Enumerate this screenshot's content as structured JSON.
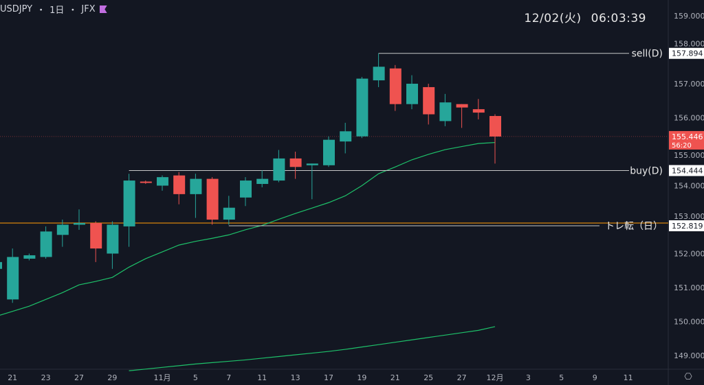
{
  "header": {
    "symbol": "USDJPY",
    "sep1": "・",
    "interval": "1日",
    "sep2": "・",
    "exchange": "JFX",
    "flag_icon": "flag-icon",
    "flag_color": "#c16ee0"
  },
  "clock": {
    "date": "12/02(火)",
    "time": "06:03:39"
  },
  "colors": {
    "up": "#26a69a",
    "down": "#ef5350",
    "ma_short": "#1ec26a",
    "ma_long": "#1ec26a",
    "orange_line": "#b8740f",
    "bg": "#131722"
  },
  "chart_data": {
    "type": "candlestick",
    "title": "USDJPY・1日・JFX",
    "y_ticks": [
      "159.000",
      "158.000",
      "157.000",
      "156.000",
      "155.000",
      "154.000",
      "153.000",
      "152.000",
      "151.000",
      "150.000",
      "149.000"
    ],
    "y_tick_values": [
      159,
      158,
      157,
      156,
      155,
      154,
      153,
      152,
      151,
      150,
      149
    ],
    "x_ticks": [
      {
        "label": "21",
        "index": 1
      },
      {
        "label": "23",
        "index": 3
      },
      {
        "label": "27",
        "index": 5
      },
      {
        "label": "29",
        "index": 7
      },
      {
        "label": "11月",
        "index": 10
      },
      {
        "label": "5",
        "index": 12
      },
      {
        "label": "7",
        "index": 14
      },
      {
        "label": "11",
        "index": 16
      },
      {
        "label": "13",
        "index": 18
      },
      {
        "label": "17",
        "index": 20
      },
      {
        "label": "19",
        "index": 22
      },
      {
        "label": "21",
        "index": 24
      },
      {
        "label": "25",
        "index": 26
      },
      {
        "label": "27",
        "index": 28
      },
      {
        "label": "12月",
        "index": 30
      },
      {
        "label": "3",
        "index": 32
      },
      {
        "label": "5",
        "index": 34
      },
      {
        "label": "9",
        "index": 36
      },
      {
        "label": "11",
        "index": 38
      }
    ],
    "candles": [
      [
        151.55,
        151.8,
        151.45,
        151.75
      ],
      [
        150.65,
        152.15,
        150.55,
        151.9
      ],
      [
        151.85,
        152.0,
        151.8,
        151.95
      ],
      [
        151.9,
        152.8,
        151.85,
        152.65
      ],
      [
        152.55,
        153.0,
        152.2,
        152.85
      ],
      [
        152.85,
        153.3,
        152.7,
        152.9
      ],
      [
        152.9,
        152.95,
        151.75,
        152.15
      ],
      [
        152.0,
        152.95,
        151.55,
        152.85
      ],
      [
        152.8,
        154.35,
        152.2,
        154.15
      ],
      [
        154.12,
        154.15,
        154.05,
        154.08
      ],
      [
        154.0,
        154.3,
        153.85,
        154.25
      ],
      [
        154.3,
        154.4,
        153.45,
        153.75
      ],
      [
        153.75,
        154.35,
        153.05,
        154.2
      ],
      [
        154.2,
        154.25,
        152.85,
        153.0
      ],
      [
        153.0,
        153.7,
        152.85,
        153.35
      ],
      [
        153.65,
        154.25,
        153.4,
        154.15
      ],
      [
        154.05,
        154.45,
        153.95,
        154.2
      ],
      [
        154.15,
        155.05,
        154.1,
        154.8
      ],
      [
        154.8,
        155.0,
        154.2,
        154.55
      ],
      [
        154.6,
        154.65,
        153.6,
        154.65
      ],
      [
        154.6,
        155.45,
        154.55,
        155.35
      ],
      [
        155.3,
        155.85,
        154.95,
        155.6
      ],
      [
        155.45,
        157.2,
        155.4,
        157.15
      ],
      [
        157.1,
        157.894,
        156.9,
        157.5
      ],
      [
        157.45,
        157.55,
        156.2,
        156.4
      ],
      [
        156.4,
        157.25,
        156.25,
        157.0
      ],
      [
        156.9,
        157.0,
        155.8,
        156.1
      ],
      [
        155.9,
        156.7,
        155.75,
        156.45
      ],
      [
        156.4,
        156.4,
        155.7,
        156.3
      ],
      [
        156.25,
        156.55,
        155.95,
        156.15
      ],
      [
        156.05,
        156.1,
        154.65,
        155.446
      ]
    ],
    "candle_format": "[open, high, low, close]",
    "ma_short": [
      150.15,
      150.3,
      150.45,
      150.65,
      150.85,
      151.08,
      151.18,
      151.3,
      151.6,
      151.85,
      152.05,
      152.25,
      152.36,
      152.45,
      152.55,
      152.7,
      152.83,
      153.01,
      153.18,
      153.34,
      153.5,
      153.7,
      154.0,
      154.35,
      154.55,
      154.76,
      154.92,
      155.06,
      155.15,
      155.24,
      155.27
    ],
    "ma_long_start_index": 8,
    "ma_long": [
      148.55,
      148.6,
      148.65,
      148.7,
      148.75,
      148.79,
      148.83,
      148.87,
      148.92,
      148.97,
      149.02,
      149.07,
      149.12,
      149.18,
      149.25,
      149.32,
      149.39,
      149.46,
      149.53,
      149.6,
      149.67,
      149.74,
      149.85
    ],
    "levels": [
      {
        "name": "sell-level",
        "label": "sell(D)",
        "price": 157.894,
        "price_label": "157.894",
        "start_index": 23
      },
      {
        "name": "buy-level",
        "label": "buy(D)",
        "price": 154.444,
        "price_label": "154.444",
        "start_index": 8
      },
      {
        "name": "trend-reversal-level",
        "label": "トレ転（日）",
        "price": 152.819,
        "price_label": "152.819",
        "start_index": 14
      }
    ],
    "orange_line_price": 152.9,
    "last_price": {
      "price": 155.446,
      "label": "155.446",
      "countdown": "56:20"
    }
  },
  "settings_icon": "gear-icon"
}
